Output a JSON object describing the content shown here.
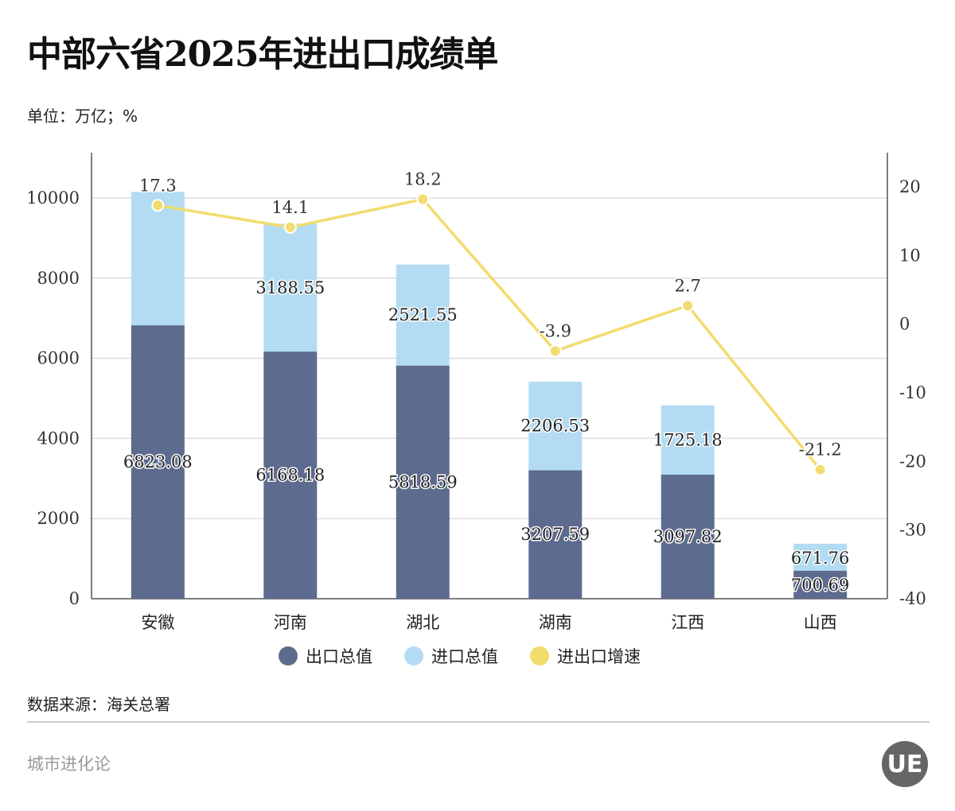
{
  "title": "中部六省2025年进出口成绩单",
  "unit": "单位：万亿；%",
  "source": "数据来源：海关总署",
  "brand": "城市进化论",
  "logo_text": "UE",
  "colors": {
    "export": "#5d6b8f",
    "import": "#b3dcf3",
    "growth": "#f2dc6e"
  },
  "chart_data": {
    "type": "bar",
    "stacked": true,
    "categories": [
      "安徽",
      "河南",
      "湖北",
      "湖南",
      "江西",
      "山西"
    ],
    "series": [
      {
        "name": "出口总值",
        "type": "bar",
        "axis": "left",
        "values": [
          6823.08,
          6168.18,
          5818.59,
          3207.59,
          3097.82,
          700.69
        ],
        "labels": [
          "6823.08",
          "6168.18",
          "5818.59",
          "3207.59",
          "3097.82",
          "700.69"
        ]
      },
      {
        "name": "进口总值",
        "type": "bar",
        "axis": "left",
        "values": [
          3330,
          3188.55,
          2521.55,
          2206.53,
          1725.18,
          671.76
        ],
        "labels": [
          null,
          "3188.55",
          "2521.55",
          "2206.53",
          "1725.18",
          "671.76"
        ]
      },
      {
        "name": "进出口增速",
        "type": "line",
        "axis": "right",
        "values": [
          17.3,
          14.1,
          18.2,
          -3.9,
          2.7,
          -21.2
        ],
        "labels": [
          "17.3",
          "14.1",
          "18.2",
          "-3.9",
          "2.7",
          "-21.2"
        ]
      }
    ],
    "left_axis": {
      "ylim": [
        0,
        10000
      ],
      "ticks": [
        "0",
        "2000",
        "4000",
        "6000",
        "8000",
        "10000"
      ]
    },
    "right_axis": {
      "ylim": [
        -40,
        20
      ],
      "ticks": [
        "-40",
        "-30",
        "-20",
        "-10",
        "0",
        "10",
        "20"
      ]
    },
    "grid": true,
    "legend": "bottom"
  }
}
